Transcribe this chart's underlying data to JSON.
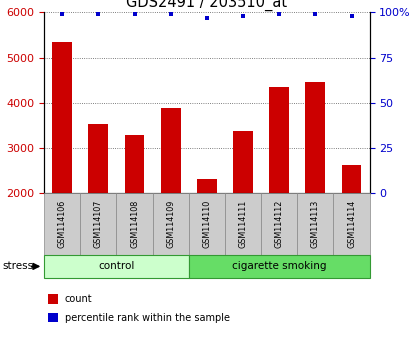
{
  "title": "GDS2491 / 203510_at",
  "samples": [
    "GSM114106",
    "GSM114107",
    "GSM114108",
    "GSM114109",
    "GSM114110",
    "GSM114111",
    "GSM114112",
    "GSM114113",
    "GSM114114"
  ],
  "counts": [
    5350,
    3520,
    3280,
    3880,
    2310,
    3380,
    4340,
    4460,
    2620
  ],
  "percentile_ranks": [
    99,
    99,
    99,
    99,
    97,
    98,
    99,
    99,
    98
  ],
  "bar_color": "#cc0000",
  "dot_color": "#0000cc",
  "ylim_left": [
    2000,
    6000
  ],
  "ylim_right": [
    0,
    100
  ],
  "yticks_left": [
    2000,
    3000,
    4000,
    5000,
    6000
  ],
  "yticks_right": [
    0,
    25,
    50,
    75,
    100
  ],
  "yticklabels_right": [
    "0",
    "25",
    "50",
    "75",
    "100%"
  ],
  "groups": [
    {
      "label": "control",
      "start": 0,
      "end": 3,
      "color": "#ccffcc",
      "border": "#339933"
    },
    {
      "label": "cigarette smoking",
      "start": 4,
      "end": 8,
      "color": "#66dd66",
      "border": "#339933"
    }
  ],
  "stress_label": "stress",
  "legend_items": [
    {
      "color": "#cc0000",
      "label": "count"
    },
    {
      "color": "#0000cc",
      "label": "percentile rank within the sample"
    }
  ],
  "grid_color": "#555555",
  "background_color": "#ffffff",
  "bar_width": 0.55,
  "title_fontsize": 10.5,
  "label_box_color": "#cccccc",
  "label_box_edge": "#888888"
}
